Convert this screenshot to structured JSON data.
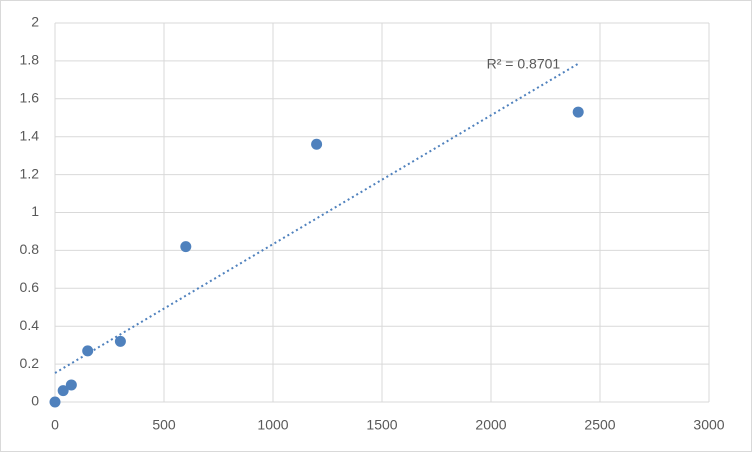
{
  "chart_data": {
    "type": "scatter",
    "x": [
      0,
      37.5,
      75,
      150,
      300,
      600,
      1200,
      2400
    ],
    "values": [
      0,
      0.06,
      0.09,
      0.27,
      0.32,
      0.82,
      1.36,
      1.53
    ],
    "color": "#4f81bd",
    "xlim": [
      0,
      3000
    ],
    "xticks": [
      0,
      500,
      1000,
      1500,
      2000,
      2500,
      3000
    ],
    "ylim": [
      0,
      2
    ],
    "yticks": [
      0,
      0.2,
      0.4,
      0.6,
      0.8,
      1,
      1.2,
      1.4,
      1.6,
      1.8,
      2
    ],
    "grid": true,
    "trendline": {
      "x": [
        0,
        2400
      ],
      "values": [
        0.153,
        1.785
      ],
      "label": "R² = 0.8701"
    }
  }
}
